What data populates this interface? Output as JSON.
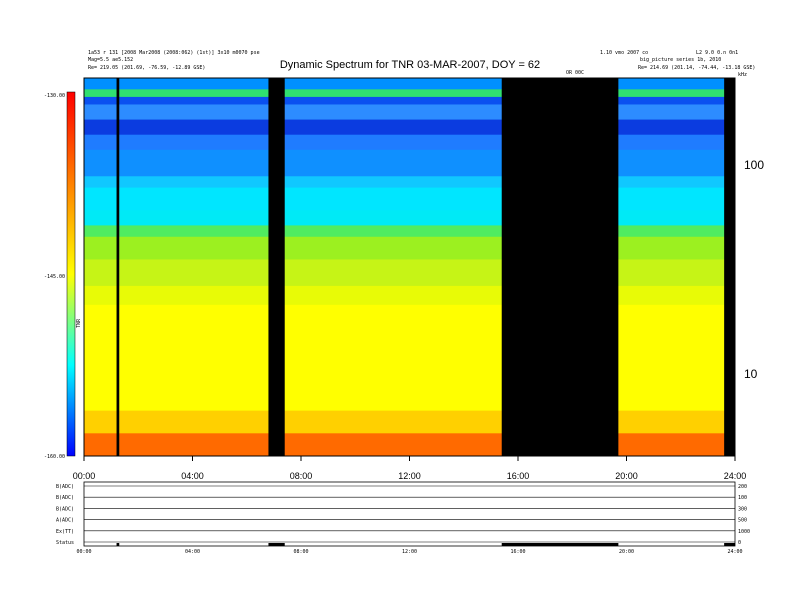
{
  "chart_data": {
    "type": "heatmap",
    "title": "Dynamic Spectrum for TNR 03-MAR-2007, DOY = 62",
    "header_left": [
      "1a53 r 131 [2008 Mar2008 (2008:062) (1st)] 3x10 m0070 pse",
      "Mag=5.5 ae5.152",
      "Re=  219.05 (201.69, -76.59, -12.89 GSE)"
    ],
    "header_right": [
      "1.10 vmo 2007 co",
      "big_picture series 1b, 2010",
      "Re=  214.69 (201.14, -74.44, -13.18 GSE)"
    ],
    "header_far_right": "L2 9.0 0.n 0n1",
    "sub_label": "OR 00C",
    "colorbar": {
      "label": "TNR",
      "ticks": [
        "-130.00",
        "-145.00",
        "-160.00"
      ],
      "range": [
        -160,
        -130
      ],
      "colors": [
        "#0000ff",
        "#00ffff",
        "#ffff00",
        "#ff8000",
        "#ff0000"
      ]
    },
    "x_axis": {
      "ticks": [
        "00:00",
        "04:00",
        "08:00",
        "12:00",
        "16:00",
        "20:00",
        "24:00"
      ],
      "range_hours": [
        0,
        24
      ]
    },
    "y_axis_right": {
      "unit": "kHz",
      "ticks": [
        "100",
        "10"
      ],
      "scale": "log"
    },
    "data_gaps_hours": [
      [
        1.2,
        1.3
      ],
      [
        6.8,
        7.4
      ],
      [
        15.4,
        19.7
      ],
      [
        23.6,
        24
      ]
    ],
    "bands": [
      {
        "from": 1.0,
        "to": 0.97,
        "color": "#0090ff"
      },
      {
        "from": 0.97,
        "to": 0.95,
        "color": "#30e070"
      },
      {
        "from": 0.95,
        "to": 0.93,
        "color": "#0a50f0"
      },
      {
        "from": 0.93,
        "to": 0.89,
        "color": "#2d8cff"
      },
      {
        "from": 0.89,
        "to": 0.85,
        "color": "#0b3ce0"
      },
      {
        "from": 0.85,
        "to": 0.81,
        "color": "#1f7cff"
      },
      {
        "from": 0.81,
        "to": 0.74,
        "color": "#0f90ff"
      },
      {
        "from": 0.74,
        "to": 0.71,
        "color": "#10c8ff"
      },
      {
        "from": 0.71,
        "to": 0.65,
        "color": "#00e6ff"
      },
      {
        "from": 0.65,
        "to": 0.61,
        "color": "#00eaf6"
      },
      {
        "from": 0.61,
        "to": 0.58,
        "color": "#50ec60"
      },
      {
        "from": 0.58,
        "to": 0.52,
        "color": "#9cf020"
      },
      {
        "from": 0.52,
        "to": 0.45,
        "color": "#c6f416"
      },
      {
        "from": 0.45,
        "to": 0.4,
        "color": "#e8fb06"
      },
      {
        "from": 0.4,
        "to": 0.12,
        "color": "#ffff00"
      },
      {
        "from": 0.12,
        "to": 0.06,
        "color": "#ffd000"
      },
      {
        "from": 0.06,
        "to": 0.0,
        "color": "#ff6a00"
      }
    ],
    "lower_panels": {
      "labels": [
        "B(ADC)",
        "B(ADC)",
        "B(ADC)",
        "A(ADC)",
        "Ex(TT)",
        "Status"
      ],
      "right_scale": [
        "200",
        "100",
        "300",
        "500",
        "1000",
        "0"
      ]
    }
  }
}
